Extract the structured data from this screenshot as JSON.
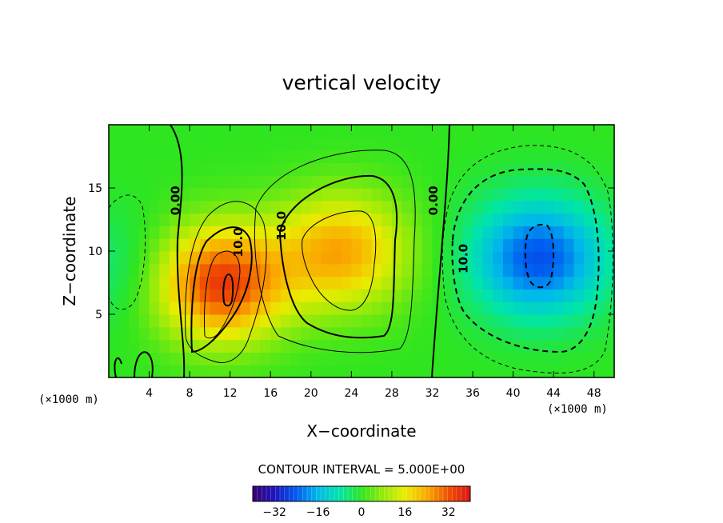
{
  "chart_data": {
    "type": "heatmap",
    "title": "vertical velocity",
    "xlabel": "X−coordinate",
    "ylabel": "Z−coordinate",
    "x_unit": "(×1000 m)",
    "z_unit": "(×1000 m)",
    "xlim": [
      0,
      50
    ],
    "ylim": [
      0,
      20
    ],
    "x_ticks": [
      4,
      8,
      12,
      16,
      20,
      24,
      28,
      32,
      36,
      40,
      44,
      48
    ],
    "x_tick_labels": [
      "4",
      "8",
      "12",
      "16",
      "20",
      "24",
      "28",
      "32",
      "36",
      "40",
      "44",
      "48"
    ],
    "y_ticks": [
      5,
      10,
      15
    ],
    "y_tick_labels": [
      "5",
      "10",
      "15"
    ],
    "contour_interval_text": "CONTOUR INTERVAL = 5.000E+00",
    "contour_labels": [
      {
        "text": "0.00",
        "x": 7.0,
        "z": 14.0
      },
      {
        "text": "10.0",
        "x": 13.2,
        "z": 10.7
      },
      {
        "text": "10.0",
        "x": 17.5,
        "z": 12.0
      },
      {
        "text": "0.00",
        "x": 32.5,
        "z": 14.0
      },
      {
        "text": "10.0",
        "x": 35.5,
        "z": 9.4
      }
    ],
    "features": [
      {
        "x": 11.0,
        "z": 7.5,
        "w": 35
      },
      {
        "x": 23.0,
        "z": 10.0,
        "w": 24
      },
      {
        "x": 42.5,
        "z": 9.5,
        "w": -25
      },
      {
        "x": 1.5,
        "z": 8.5,
        "w": -6
      }
    ],
    "colorbar": {
      "range": [
        -40,
        40
      ],
      "ticks": [
        -32,
        -16,
        0,
        16,
        32
      ],
      "tick_labels": [
        "−32",
        "−16",
        "0",
        "16",
        "32"
      ]
    }
  }
}
